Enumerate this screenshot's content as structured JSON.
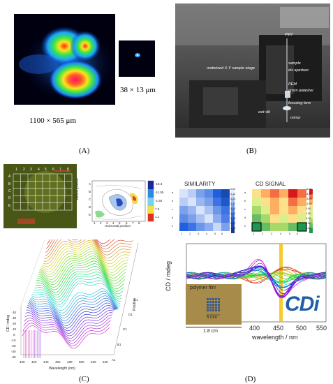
{
  "panel_a": {
    "label": "(A)",
    "dim_large": "1100 × 565 μm",
    "dim_small": "38 × 13 μm"
  },
  "panel_b": {
    "label": "(B)",
    "annotations": [
      "PMT",
      "motorized X-Y sample stage",
      "sample",
      "iris aperture",
      "PEM",
      "prism polarizer",
      "focusing lens",
      "mirror",
      "exit slit"
    ]
  },
  "panel_c": {
    "label": "(C)",
    "grid_cols": [
      "1",
      "2",
      "3",
      "4",
      "5",
      "6",
      "7",
      "8"
    ],
    "grid_rows": [
      "A",
      "B",
      "C",
      "D",
      "E"
    ],
    "contour_ylabel": "Vertical position",
    "contour_xlabel": "Horizontal position",
    "contour_xticks": [
      "1",
      "2",
      "3",
      "4",
      "5",
      "6",
      "7",
      "8"
    ],
    "contour_yticks": [
      "A",
      "B",
      "C",
      "D",
      "E"
    ],
    "contour_colorbar": [
      "-16.3",
      "-11.05",
      "-1.50",
      "7.0",
      "1.1"
    ],
    "plot3d_ylabel": "CD / mdeg",
    "plot3d_xlabel": "Wavelength (nm)",
    "plot3d_zlabel": "Position",
    "plot3d_xticks": [
      "400",
      "420",
      "440",
      "460",
      "480",
      "500",
      "520",
      "540"
    ],
    "plot3d_yticks": [
      "-40",
      "-30",
      "-20",
      "-10",
      "0",
      "10",
      "20",
      "30",
      "40"
    ],
    "plot3d_ztags": [
      "A1",
      "B1",
      "C1",
      "D1",
      "E1"
    ]
  },
  "panel_d": {
    "label": "(D)",
    "similarity_title": "SIMILARITY",
    "similarity_colorbar": [
      "0.00",
      "0.12",
      "0.25",
      "0.37",
      "0.50",
      "0.62",
      "0.75",
      "0.87",
      "1.00"
    ],
    "similarity_xticks": [
      "1",
      "2",
      "3",
      "4",
      "5",
      "6"
    ],
    "similarity_yticks": [
      "a",
      "b",
      "c",
      "d",
      "e"
    ],
    "cd_title": "CD SIGNAL",
    "cd_colorbar": [
      "-6.00",
      "-4.50",
      "-3.00",
      "-1.50",
      "0.00",
      "1.50",
      "3.00",
      "4.50",
      "6.00"
    ],
    "cd_xticks": [
      "1",
      "2",
      "3",
      "4",
      "5",
      "6"
    ],
    "cd_yticks": [
      "a",
      "b",
      "c",
      "d",
      "e"
    ],
    "polymer_label": "polymer film",
    "scale_inner": "5 mm",
    "scale_outer": "1.8 cm",
    "logo_text": "CDi",
    "ylabel": "CD / mdeg",
    "xlabel": "wavelength / nm",
    "xticks": [
      "400",
      "450",
      "500",
      "550"
    ],
    "colors": {
      "highlight_bar": "#f4c20d",
      "logo": "#1f5fa8"
    }
  }
}
